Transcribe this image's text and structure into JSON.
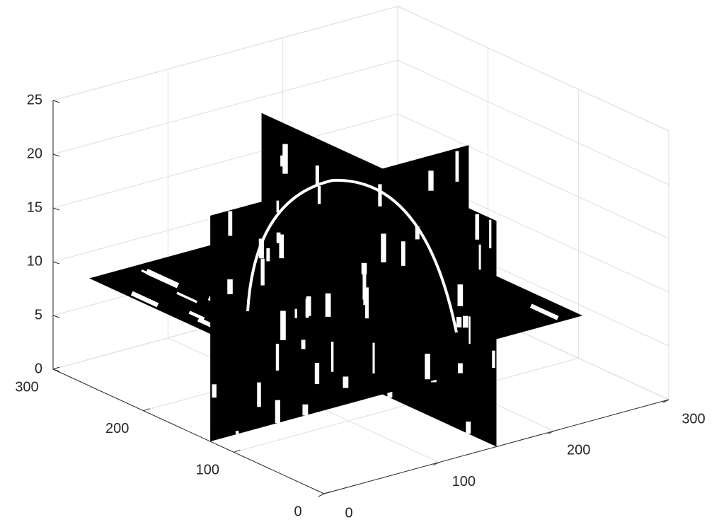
{
  "chart_data": {
    "type": "slice3d",
    "xlim": [
      0,
      300
    ],
    "ylim": [
      0,
      300
    ],
    "zlim": [
      0,
      25
    ],
    "xticks": [
      0,
      100,
      200,
      300
    ],
    "yticks": [
      0,
      100,
      200,
      300
    ],
    "zticks": [
      0,
      5,
      10,
      15,
      20,
      25
    ],
    "volume": {
      "x": [
        0,
        225
      ],
      "y": [
        0,
        260
      ],
      "z": [
        0,
        21
      ]
    },
    "slices": {
      "x": 150,
      "y": 126,
      "z": 10
    },
    "grid": true,
    "color": "#000000"
  }
}
